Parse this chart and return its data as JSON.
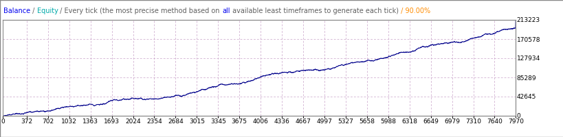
{
  "title_parts": [
    {
      "text": "Balance",
      "color": "#0000EE"
    },
    {
      "text": " / ",
      "color": "#606060"
    },
    {
      "text": "Equity",
      "color": "#00AAAA"
    },
    {
      "text": " / Every tick (the most precise method based on ",
      "color": "#606060"
    },
    {
      "text": "all",
      "color": "#0000EE"
    },
    {
      "text": " available least timeframes to generate each tick)",
      "color": "#606060"
    },
    {
      "text": " / 90.00%",
      "color": "#FF8C00"
    }
  ],
  "x_ticks": [
    0,
    372,
    702,
    1032,
    1363,
    1693,
    2024,
    2354,
    2684,
    3015,
    3345,
    3675,
    4006,
    4336,
    4667,
    4997,
    5327,
    5658,
    5988,
    6318,
    6649,
    6979,
    7310,
    7640,
    7970
  ],
  "y_ticks_right": [
    0,
    42645,
    85289,
    127934,
    170578,
    213223
  ],
  "y_max": 213223,
  "y_min": 0,
  "x_min": 0,
  "x_max": 7970,
  "line_color": "#00008B",
  "bg_color": "#FFFFFF",
  "plot_bg_color": "#FFFFFF",
  "grid_color": "#C8A0C8",
  "border_color": "#888888",
  "title_fontsize": 7.0,
  "tick_fontsize": 6.5
}
